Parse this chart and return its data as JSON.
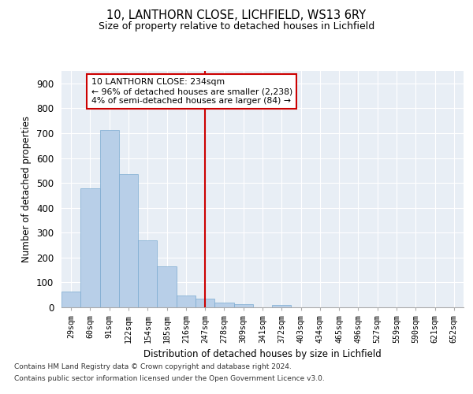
{
  "title1": "10, LANTHORN CLOSE, LICHFIELD, WS13 6RY",
  "title2": "Size of property relative to detached houses in Lichfield",
  "xlabel": "Distribution of detached houses by size in Lichfield",
  "ylabel": "Number of detached properties",
  "categories": [
    "29sqm",
    "60sqm",
    "91sqm",
    "122sqm",
    "154sqm",
    "185sqm",
    "216sqm",
    "247sqm",
    "278sqm",
    "309sqm",
    "341sqm",
    "372sqm",
    "403sqm",
    "434sqm",
    "465sqm",
    "496sqm",
    "527sqm",
    "559sqm",
    "590sqm",
    "621sqm",
    "652sqm"
  ],
  "values": [
    62,
    478,
    712,
    535,
    270,
    165,
    46,
    35,
    18,
    12,
    0,
    8,
    0,
    0,
    0,
    0,
    0,
    0,
    0,
    0,
    0
  ],
  "bar_color": "#b8cfe8",
  "bar_edge_color": "#7aaad0",
  "vline_x_index": 7.0,
  "vline_color": "#cc0000",
  "annotation_text": "10 LANTHORN CLOSE: 234sqm\n← 96% of detached houses are smaller (2,238)\n4% of semi-detached houses are larger (84) →",
  "annotation_box_color": "#ffffff",
  "annotation_box_edge": "#cc0000",
  "ylim": [
    0,
    950
  ],
  "yticks": [
    0,
    100,
    200,
    300,
    400,
    500,
    600,
    700,
    800,
    900
  ],
  "bg_color": "#e8eef5",
  "grid_color": "#ffffff",
  "footer1": "Contains HM Land Registry data © Crown copyright and database right 2024.",
  "footer2": "Contains public sector information licensed under the Open Government Licence v3.0."
}
